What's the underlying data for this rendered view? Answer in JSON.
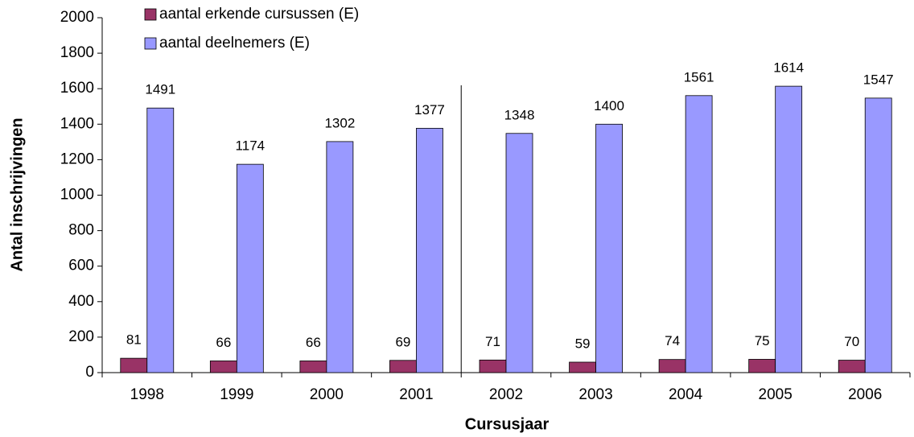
{
  "chart_data": {
    "type": "bar",
    "xlabel": "Cursusjaar",
    "ylabel": "Antal inschrijvingen",
    "categories": [
      "1998",
      "1999",
      "2000",
      "2001",
      "2002",
      "2003",
      "2004",
      "2005",
      "2006"
    ],
    "series": [
      {
        "name": "aantal erkende cursussen (E)",
        "color": "#993366",
        "values": [
          81,
          66,
          66,
          69,
          71,
          59,
          74,
          75,
          70
        ]
      },
      {
        "name": "aantal deelnemers (E)",
        "color": "#9999ff",
        "values": [
          1491,
          1174,
          1302,
          1377,
          1348,
          1400,
          1561,
          1614,
          1547
        ]
      }
    ],
    "ylim": [
      0,
      2000
    ],
    "yticks": [
      0,
      200,
      400,
      600,
      800,
      1000,
      1200,
      1400,
      1600,
      1800,
      2000
    ],
    "legend": "top-left",
    "grid": false
  }
}
